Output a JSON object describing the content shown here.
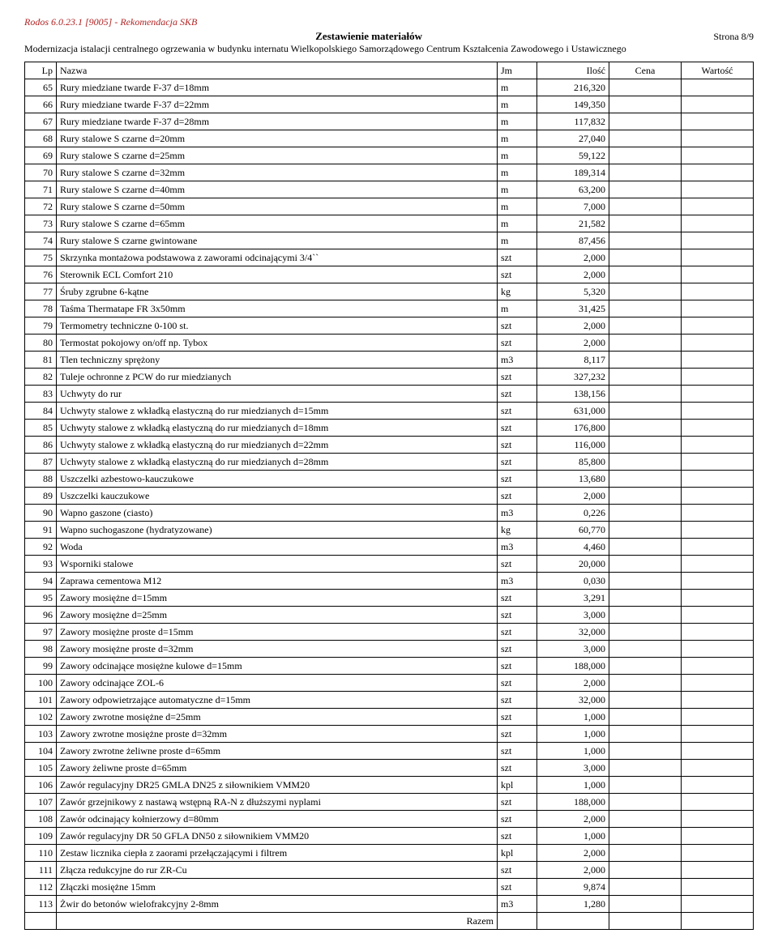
{
  "header": {
    "line1": "Rodos 6.0.23.1 [9005] - Rekomendacja SKB",
    "title": "Zestawienie materiałów",
    "page": "Strona 8/9",
    "subtitle": "Modernizacja istalacji centralnego ogrzewania w budynku internatu Wielkopolskiego Samorządowego Centrum Kształcenia Zawodowego i Ustawicznego"
  },
  "columns": {
    "lp": "Lp",
    "nazwa": "Nazwa",
    "jm": "Jm",
    "ilosc": "Ilość",
    "cena": "Cena",
    "wartosc": "Wartość"
  },
  "rows": [
    {
      "lp": "65",
      "nazwa": "Rury miedziane twarde F-37 d=18mm",
      "jm": "m",
      "ilosc": "216,320"
    },
    {
      "lp": "66",
      "nazwa": "Rury miedziane twarde F-37 d=22mm",
      "jm": "m",
      "ilosc": "149,350"
    },
    {
      "lp": "67",
      "nazwa": "Rury miedziane twarde F-37 d=28mm",
      "jm": "m",
      "ilosc": "117,832"
    },
    {
      "lp": "68",
      "nazwa": "Rury stalowe S czarne  d=20mm",
      "jm": "m",
      "ilosc": "27,040"
    },
    {
      "lp": "69",
      "nazwa": "Rury stalowe S czarne  d=25mm",
      "jm": "m",
      "ilosc": "59,122"
    },
    {
      "lp": "70",
      "nazwa": "Rury stalowe S czarne  d=32mm",
      "jm": "m",
      "ilosc": "189,314"
    },
    {
      "lp": "71",
      "nazwa": "Rury stalowe S czarne  d=40mm",
      "jm": "m",
      "ilosc": "63,200"
    },
    {
      "lp": "72",
      "nazwa": "Rury stalowe S czarne  d=50mm",
      "jm": "m",
      "ilosc": "7,000"
    },
    {
      "lp": "73",
      "nazwa": "Rury stalowe S czarne  d=65mm",
      "jm": "m",
      "ilosc": "21,582"
    },
    {
      "lp": "74",
      "nazwa": "Rury stalowe S czarne gwintowane",
      "jm": "m",
      "ilosc": "87,456"
    },
    {
      "lp": "75",
      "nazwa": "Skrzynka montażowa podstawowa z zaworami odcinającymi 3/4``",
      "jm": "szt",
      "ilosc": "2,000"
    },
    {
      "lp": "76",
      "nazwa": "Sterownik ECL Comfort 210",
      "jm": "szt",
      "ilosc": "2,000"
    },
    {
      "lp": "77",
      "nazwa": "Śruby zgrubne 6-kątne",
      "jm": "kg",
      "ilosc": "5,320"
    },
    {
      "lp": "78",
      "nazwa": "Taśma Thermatape FR 3x50mm",
      "jm": "m",
      "ilosc": "31,425"
    },
    {
      "lp": "79",
      "nazwa": "Termometry techniczne 0-100 st.",
      "jm": "szt",
      "ilosc": "2,000"
    },
    {
      "lp": "80",
      "nazwa": "Termostat pokojowy on/off np. Tybox",
      "jm": "szt",
      "ilosc": "2,000"
    },
    {
      "lp": "81",
      "nazwa": "Tlen techniczny sprężony",
      "jm": "m3",
      "ilosc": "8,117"
    },
    {
      "lp": "82",
      "nazwa": "Tuleje ochronne z PCW do rur miedzianych",
      "jm": "szt",
      "ilosc": "327,232"
    },
    {
      "lp": "83",
      "nazwa": "Uchwyty do rur",
      "jm": "szt",
      "ilosc": "138,156"
    },
    {
      "lp": "84",
      "nazwa": "Uchwyty stalowe z wkładką elastyczną do rur miedzianych  d=15mm",
      "jm": "szt",
      "ilosc": "631,000"
    },
    {
      "lp": "85",
      "nazwa": "Uchwyty stalowe z wkładką elastyczną do rur miedzianych  d=18mm",
      "jm": "szt",
      "ilosc": "176,800"
    },
    {
      "lp": "86",
      "nazwa": "Uchwyty stalowe z wkładką elastyczną do rur miedzianych  d=22mm",
      "jm": "szt",
      "ilosc": "116,000"
    },
    {
      "lp": "87",
      "nazwa": "Uchwyty stalowe z wkładką elastyczną do rur miedzianych  d=28mm",
      "jm": "szt",
      "ilosc": "85,800"
    },
    {
      "lp": "88",
      "nazwa": "Uszczelki azbestowo-kauczukowe",
      "jm": "szt",
      "ilosc": "13,680"
    },
    {
      "lp": "89",
      "nazwa": "Uszczelki kauczukowe",
      "jm": "szt",
      "ilosc": "2,000"
    },
    {
      "lp": "90",
      "nazwa": "Wapno gaszone (ciasto)",
      "jm": "m3",
      "ilosc": "0,226"
    },
    {
      "lp": "91",
      "nazwa": "Wapno suchogaszone (hydratyzowane)",
      "jm": "kg",
      "ilosc": "60,770"
    },
    {
      "lp": "92",
      "nazwa": "Woda",
      "jm": "m3",
      "ilosc": "4,460"
    },
    {
      "lp": "93",
      "nazwa": "Wsporniki stalowe",
      "jm": "szt",
      "ilosc": "20,000"
    },
    {
      "lp": "94",
      "nazwa": "Zaprawa cementowa M12",
      "jm": "m3",
      "ilosc": "0,030"
    },
    {
      "lp": "95",
      "nazwa": "Zawory mosiężne d=15mm",
      "jm": "szt",
      "ilosc": "3,291"
    },
    {
      "lp": "96",
      "nazwa": "Zawory mosiężne d=25mm",
      "jm": "szt",
      "ilosc": "3,000"
    },
    {
      "lp": "97",
      "nazwa": "Zawory mosiężne proste d=15mm",
      "jm": "szt",
      "ilosc": "32,000"
    },
    {
      "lp": "98",
      "nazwa": "Zawory mosiężne proste d=32mm",
      "jm": "szt",
      "ilosc": "3,000"
    },
    {
      "lp": "99",
      "nazwa": "Zawory odcinające mosiężne kulowe  d=15mm",
      "jm": "szt",
      "ilosc": "188,000"
    },
    {
      "lp": "100",
      "nazwa": "Zawory odcinające ZOL-6",
      "jm": "szt",
      "ilosc": "2,000"
    },
    {
      "lp": "101",
      "nazwa": "Zawory odpowietrzające automatyczne d=15mm",
      "jm": "szt",
      "ilosc": "32,000"
    },
    {
      "lp": "102",
      "nazwa": "Zawory zwrotne mosiężne d=25mm",
      "jm": "szt",
      "ilosc": "1,000"
    },
    {
      "lp": "103",
      "nazwa": "Zawory zwrotne mosiężne proste d=32mm",
      "jm": "szt",
      "ilosc": "1,000"
    },
    {
      "lp": "104",
      "nazwa": "Zawory zwrotne żeliwne proste d=65mm",
      "jm": "szt",
      "ilosc": "1,000"
    },
    {
      "lp": "105",
      "nazwa": "Zawory żeliwne proste d=65mm",
      "jm": "szt",
      "ilosc": "3,000"
    },
    {
      "lp": "106",
      "nazwa": "Zawór  regulacyjny DR25 GMLA DN25 z siłownikiem VMM20",
      "jm": "kpl",
      "ilosc": "1,000"
    },
    {
      "lp": "107",
      "nazwa": "Zawór grzejnikowy z nastawą wstępną RA-N z dłuższymi nyplami",
      "jm": "szt",
      "ilosc": "188,000"
    },
    {
      "lp": "108",
      "nazwa": "Zawór odcinający kołnierzowy d=80mm",
      "jm": "szt",
      "ilosc": "2,000"
    },
    {
      "lp": "109",
      "nazwa": "Zawór regulacyjny DR 50 GFLA DN50 z siłownikiem VMM20",
      "jm": "szt",
      "ilosc": "1,000"
    },
    {
      "lp": "110",
      "nazwa": "Zestaw licznika ciepła z zaorami przełączającymi i filtrem",
      "jm": "kpl",
      "ilosc": "2,000"
    },
    {
      "lp": "111",
      "nazwa": "Złącza redukcyjne do rur ZR-Cu",
      "jm": "szt",
      "ilosc": "2,000"
    },
    {
      "lp": "112",
      "nazwa": "Złączki mosiężne 15mm",
      "jm": "szt",
      "ilosc": "9,874"
    },
    {
      "lp": "113",
      "nazwa": "Żwir do betonów wielofrakcyjny  2-8mm",
      "jm": "m3",
      "ilosc": "1,280"
    }
  ],
  "footer": {
    "razem": "Razem"
  }
}
